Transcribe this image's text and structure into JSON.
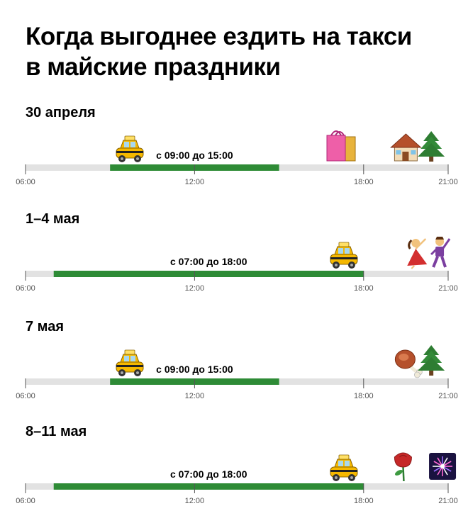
{
  "header": {
    "title_line1": "Когда выгоднее ездить на такси",
    "title_line2": "в майские праздники"
  },
  "axis": {
    "ticks": [
      "06:00",
      "12:00",
      "18:00",
      "21:00"
    ],
    "tick_hours": [
      6,
      12,
      18,
      21
    ]
  },
  "colors": {
    "track": "#e2e2e2",
    "range": "#2e8b36",
    "tick": "#555555"
  },
  "chart_data": [
    {
      "type": "bar",
      "title": "30 апреля",
      "range_start": 9,
      "range_end": 15,
      "range_label": "с 09:00 до 15:00",
      "xlim": [
        6,
        21
      ],
      "markers": [
        {
          "icon": "taxi-icon",
          "hour": 9.7
        },
        {
          "icon": "shopping-bags-icon",
          "hour": 17.2
        },
        {
          "icon": "house-icon",
          "hour": 19.5
        },
        {
          "icon": "fir-tree-icon",
          "hour": 20.4
        }
      ]
    },
    {
      "type": "bar",
      "title": "1–4 мая",
      "range_start": 7,
      "range_end": 18,
      "range_label": "с 07:00 до 18:00",
      "xlim": [
        6,
        21
      ],
      "markers": [
        {
          "icon": "taxi-icon",
          "hour": 17.3
        },
        {
          "icon": "dancing-woman-icon",
          "hour": 19.9
        },
        {
          "icon": "dancing-man-icon",
          "hour": 20.7
        }
      ]
    },
    {
      "type": "bar",
      "title": "7 мая",
      "range_start": 9,
      "range_end": 15,
      "range_label": "с 09:00 до 15:00",
      "xlim": [
        6,
        21
      ],
      "markers": [
        {
          "icon": "taxi-icon",
          "hour": 9.7
        },
        {
          "icon": "meat-on-bone-icon",
          "hour": 19.6
        },
        {
          "icon": "fir-tree-icon",
          "hour": 20.4
        }
      ]
    },
    {
      "type": "bar",
      "title": "8–11 мая",
      "range_start": 7,
      "range_end": 18,
      "range_label": "с 07:00 до 18:00",
      "xlim": [
        6,
        21
      ],
      "markers": [
        {
          "icon": "taxi-icon",
          "hour": 17.3
        },
        {
          "icon": "rose-icon",
          "hour": 19.4
        },
        {
          "icon": "fireworks-icon",
          "hour": 20.8
        }
      ]
    }
  ]
}
